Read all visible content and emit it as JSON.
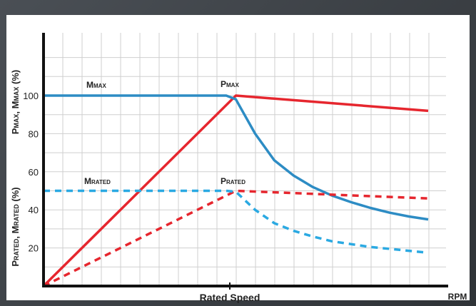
{
  "chart_data": {
    "type": "line",
    "x_label": "Rated Speed",
    "x_unit": "RPM",
    "y_label_top": {
      "main": "P",
      "sub1": "MAX",
      "mid": ", M",
      "sub2": "MAX",
      "tail": " (%)"
    },
    "y_label_bottom": {
      "main": "P",
      "sub1": "RATED",
      "mid": ", M",
      "sub2": "RATED",
      "tail": " (%)"
    },
    "y_ticks": [
      20,
      40,
      60,
      80,
      100
    ],
    "ylim": [
      0,
      120
    ],
    "x_range": [
      0,
      2
    ],
    "rated_speed_x": 1,
    "grid": true,
    "annotations": [
      {
        "main": "M",
        "sub": "MAX"
      },
      {
        "main": "P",
        "sub": "MAX"
      },
      {
        "main": "M",
        "sub": "RATED"
      },
      {
        "main": "P",
        "sub": "RATED"
      }
    ],
    "series": [
      {
        "color": "#e6262e",
        "dashed": false,
        "points": [
          [
            0,
            0
          ],
          [
            1,
            100
          ],
          [
            2,
            92
          ]
        ]
      },
      {
        "color": "#2d8cc4",
        "dashed": false,
        "points": [
          [
            0,
            100
          ],
          [
            0.95,
            100
          ],
          [
            1.0,
            98
          ],
          [
            1.1,
            80
          ],
          [
            1.2,
            66
          ],
          [
            1.3,
            58
          ],
          [
            1.4,
            52
          ],
          [
            1.5,
            47.5
          ],
          [
            1.6,
            44
          ],
          [
            1.7,
            41
          ],
          [
            1.8,
            38.5
          ],
          [
            1.9,
            36.5
          ],
          [
            2.0,
            35
          ]
        ]
      },
      {
        "color": "#e6262e",
        "dashed": true,
        "points": [
          [
            0,
            0
          ],
          [
            1,
            50
          ],
          [
            2,
            46
          ]
        ]
      },
      {
        "color": "#2aa9e2",
        "dashed": true,
        "points": [
          [
            0,
            50
          ],
          [
            0.95,
            50
          ],
          [
            1.0,
            49.5
          ],
          [
            1.1,
            40
          ],
          [
            1.2,
            33
          ],
          [
            1.3,
            29
          ],
          [
            1.4,
            26
          ],
          [
            1.5,
            23.5
          ],
          [
            1.6,
            22
          ],
          [
            1.7,
            20.5
          ],
          [
            1.8,
            19.5
          ],
          [
            1.9,
            18.5
          ],
          [
            2.0,
            17.5
          ]
        ]
      }
    ]
  }
}
